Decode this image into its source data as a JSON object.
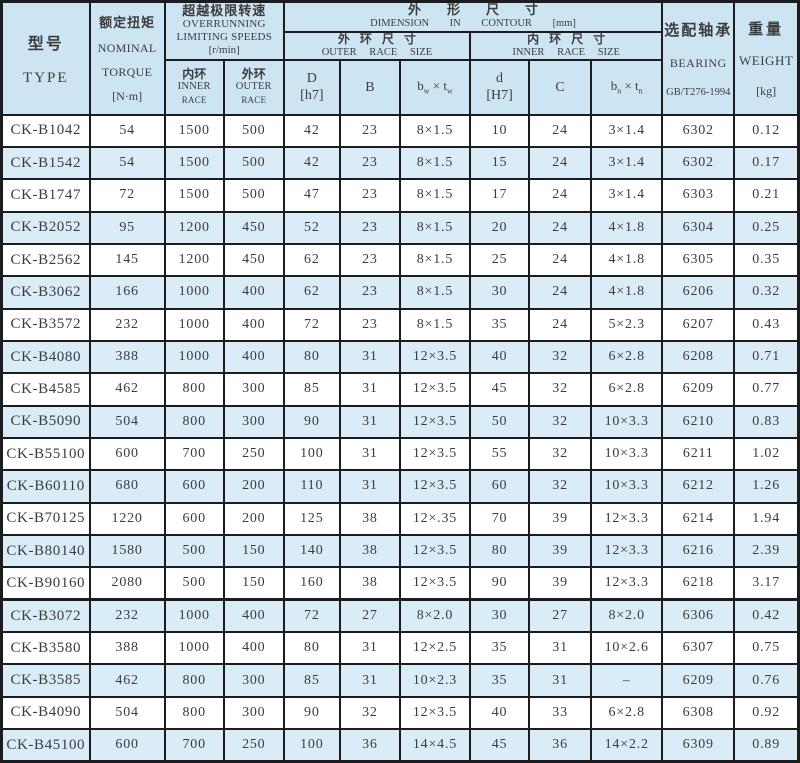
{
  "colors": {
    "header_bg": "#cde5f2",
    "row_alt_bg": "#d9ecf7",
    "row_bg": "#ffffff",
    "border": "#1c1c1c",
    "text": "#3c3c3c"
  },
  "table": {
    "header": {
      "type": {
        "zh": "型号",
        "en": "TYPE"
      },
      "torque": {
        "zh": "额定扭矩",
        "line1": "NOMINAL",
        "line2": "TORQUE",
        "unit": "[N·m]"
      },
      "speeds": {
        "zh": "超越极限转速",
        "line1": "OVERRUNNING",
        "line2": "LIMITING SPEEDS",
        "unit": "[r/min]",
        "inner": {
          "zh": "内环",
          "line1": "INNER",
          "line2": "RACE"
        },
        "outer": {
          "zh": "外环",
          "line1": "OUTER",
          "line2": "RACE"
        }
      },
      "dimension": {
        "zh": "外形尺寸",
        "en": "DIMENSION IN CONTOUR",
        "unit": "[mm]",
        "outer_race": {
          "zh": "外环尺寸",
          "en": "OUTER RACE SIZE"
        },
        "inner_race": {
          "zh": "内环尺寸",
          "en": "INNER RACE SIZE"
        },
        "col_d_outer": {
          "main": "D",
          "tol": "[h7]"
        },
        "col_b": "B",
        "col_bw": {
          "base1": "b",
          "sub1": "w",
          "times": "×",
          "base2": "t",
          "sub2": "w"
        },
        "col_d_inner": {
          "main": "d",
          "tol": "[H7]"
        },
        "col_c": "C",
        "col_bn": {
          "base1": "b",
          "sub1": "n",
          "times": "×",
          "base2": "t",
          "sub2": "n"
        }
      },
      "bearing": {
        "zh": "选配轴承",
        "en": "BEARING",
        "std": "GB/T276-1994"
      },
      "weight": {
        "zh": "重量",
        "en": "WEIGHT",
        "unit": "[kg]"
      }
    },
    "section_break_index": 15,
    "rows": [
      {
        "type": "CK-B1042",
        "torque": "54",
        "inner_speed": "1500",
        "outer_speed": "500",
        "D": "42",
        "B": "23",
        "bw_tw": "8×1.5",
        "d": "10",
        "C": "24",
        "bn_tn": "3×1.4",
        "bearing": "6302",
        "weight": "0.12"
      },
      {
        "type": "CK-B1542",
        "torque": "54",
        "inner_speed": "1500",
        "outer_speed": "500",
        "D": "42",
        "B": "23",
        "bw_tw": "8×1.5",
        "d": "15",
        "C": "24",
        "bn_tn": "3×1.4",
        "bearing": "6302",
        "weight": "0.17"
      },
      {
        "type": "CK-B1747",
        "torque": "72",
        "inner_speed": "1500",
        "outer_speed": "500",
        "D": "47",
        "B": "23",
        "bw_tw": "8×1.5",
        "d": "17",
        "C": "24",
        "bn_tn": "3×1.4",
        "bearing": "6303",
        "weight": "0.21"
      },
      {
        "type": "CK-B2052",
        "torque": "95",
        "inner_speed": "1200",
        "outer_speed": "450",
        "D": "52",
        "B": "23",
        "bw_tw": "8×1.5",
        "d": "20",
        "C": "24",
        "bn_tn": "4×1.8",
        "bearing": "6304",
        "weight": "0.25"
      },
      {
        "type": "CK-B2562",
        "torque": "145",
        "inner_speed": "1200",
        "outer_speed": "450",
        "D": "62",
        "B": "23",
        "bw_tw": "8×1.5",
        "d": "25",
        "C": "24",
        "bn_tn": "4×1.8",
        "bearing": "6305",
        "weight": "0.35"
      },
      {
        "type": "CK-B3062",
        "torque": "166",
        "inner_speed": "1000",
        "outer_speed": "400",
        "D": "62",
        "B": "23",
        "bw_tw": "8×1.5",
        "d": "30",
        "C": "24",
        "bn_tn": "4×1.8",
        "bearing": "6206",
        "weight": "0.32"
      },
      {
        "type": "CK-B3572",
        "torque": "232",
        "inner_speed": "1000",
        "outer_speed": "400",
        "D": "72",
        "B": "23",
        "bw_tw": "8×1.5",
        "d": "35",
        "C": "24",
        "bn_tn": "5×2.3",
        "bearing": "6207",
        "weight": "0.43"
      },
      {
        "type": "CK-B4080",
        "torque": "388",
        "inner_speed": "1000",
        "outer_speed": "400",
        "D": "80",
        "B": "31",
        "bw_tw": "12×3.5",
        "d": "40",
        "C": "32",
        "bn_tn": "6×2.8",
        "bearing": "6208",
        "weight": "0.71"
      },
      {
        "type": "CK-B4585",
        "torque": "462",
        "inner_speed": "800",
        "outer_speed": "300",
        "D": "85",
        "B": "31",
        "bw_tw": "12×3.5",
        "d": "45",
        "C": "32",
        "bn_tn": "6×2.8",
        "bearing": "6209",
        "weight": "0.77"
      },
      {
        "type": "CK-B5090",
        "torque": "504",
        "inner_speed": "800",
        "outer_speed": "300",
        "D": "90",
        "B": "31",
        "bw_tw": "12×3.5",
        "d": "50",
        "C": "32",
        "bn_tn": "10×3.3",
        "bearing": "6210",
        "weight": "0.83"
      },
      {
        "type": "CK-B55100",
        "torque": "600",
        "inner_speed": "700",
        "outer_speed": "250",
        "D": "100",
        "B": "31",
        "bw_tw": "12×3.5",
        "d": "55",
        "C": "32",
        "bn_tn": "10×3.3",
        "bearing": "6211",
        "weight": "1.02"
      },
      {
        "type": "CK-B60110",
        "torque": "680",
        "inner_speed": "600",
        "outer_speed": "200",
        "D": "110",
        "B": "31",
        "bw_tw": "12×3.5",
        "d": "60",
        "C": "32",
        "bn_tn": "10×3.3",
        "bearing": "6212",
        "weight": "1.26"
      },
      {
        "type": "CK-B70125",
        "torque": "1220",
        "inner_speed": "600",
        "outer_speed": "200",
        "D": "125",
        "B": "38",
        "bw_tw": "12×.35",
        "d": "70",
        "C": "39",
        "bn_tn": "12×3.3",
        "bearing": "6214",
        "weight": "1.94"
      },
      {
        "type": "CK-B80140",
        "torque": "1580",
        "inner_speed": "500",
        "outer_speed": "150",
        "D": "140",
        "B": "38",
        "bw_tw": "12×3.5",
        "d": "80",
        "C": "39",
        "bn_tn": "12×3.3",
        "bearing": "6216",
        "weight": "2.39"
      },
      {
        "type": "CK-B90160",
        "torque": "2080",
        "inner_speed": "500",
        "outer_speed": "150",
        "D": "160",
        "B": "38",
        "bw_tw": "12×3.5",
        "d": "90",
        "C": "39",
        "bn_tn": "12×3.3",
        "bearing": "6218",
        "weight": "3.17"
      },
      {
        "type": "CK-B3072",
        "torque": "232",
        "inner_speed": "1000",
        "outer_speed": "400",
        "D": "72",
        "B": "27",
        "bw_tw": "8×2.0",
        "d": "30",
        "C": "27",
        "bn_tn": "8×2.0",
        "bearing": "6306",
        "weight": "0.42"
      },
      {
        "type": "CK-B3580",
        "torque": "388",
        "inner_speed": "1000",
        "outer_speed": "400",
        "D": "80",
        "B": "31",
        "bw_tw": "12×2.5",
        "d": "35",
        "C": "31",
        "bn_tn": "10×2.6",
        "bearing": "6307",
        "weight": "0.75"
      },
      {
        "type": "CK-B3585",
        "torque": "462",
        "inner_speed": "800",
        "outer_speed": "300",
        "D": "85",
        "B": "31",
        "bw_tw": "10×2.3",
        "d": "35",
        "C": "31",
        "bn_tn": "–",
        "bearing": "6209",
        "weight": "0.76"
      },
      {
        "type": "CK-B4090",
        "torque": "504",
        "inner_speed": "800",
        "outer_speed": "300",
        "D": "90",
        "B": "32",
        "bw_tw": "12×3.5",
        "d": "40",
        "C": "33",
        "bn_tn": "6×2.8",
        "bearing": "6308",
        "weight": "0.92"
      },
      {
        "type": "CK-B45100",
        "torque": "600",
        "inner_speed": "700",
        "outer_speed": "250",
        "D": "100",
        "B": "36",
        "bw_tw": "14×4.5",
        "d": "45",
        "C": "36",
        "bn_tn": "14×2.2",
        "bearing": "6309",
        "weight": "0.89"
      }
    ]
  }
}
